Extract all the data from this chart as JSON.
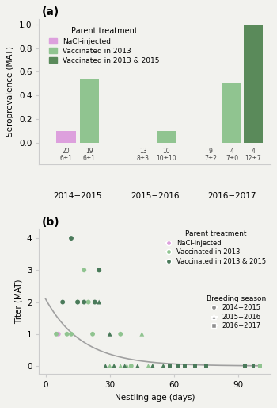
{
  "panel_a": {
    "title": "(a)",
    "ylabel": "Seroprevalence (MAT)",
    "ylim": [
      -0.18,
      1.05
    ],
    "seasons": [
      "2014−2015",
      "2015−2016",
      "2016−2017"
    ],
    "groups": [
      "NaCl-injected",
      "Vaccinated in 2013",
      "Vaccinated in 2013 & 2015"
    ],
    "colors": [
      "#dda0dd",
      "#90c490",
      "#5a8a5a"
    ],
    "bar_values": [
      [
        0.1,
        0.533,
        null
      ],
      [
        null,
        0.1,
        null
      ],
      [
        null,
        0.5,
        1.0
      ]
    ],
    "n_labels": [
      [
        "20",
        "19",
        null
      ],
      [
        "13",
        "10",
        null
      ],
      [
        "9",
        "4",
        "4"
      ]
    ],
    "sd_labels": [
      [
        "6±1",
        "6±1",
        null
      ],
      [
        "8±3",
        "10±10",
        null
      ],
      [
        "7±2",
        "7±0",
        "12±7"
      ]
    ],
    "bar_width": 0.25
  },
  "panel_b": {
    "title": "(b)",
    "xlabel": "Nestling age (days)",
    "ylabel": "Titer (MAT)",
    "ylim": [
      -0.25,
      4.3
    ],
    "xlim": [
      -3,
      105
    ],
    "yticks": [
      0,
      1,
      2,
      3,
      4
    ],
    "xticks": [
      0,
      30,
      60,
      90
    ],
    "decay_a": 2.1,
    "decay_b": 0.058,
    "pink": "#dda0dd",
    "lgreen": "#90c490",
    "dgreen": "#4a7a5a",
    "grey": "#a0a0a0",
    "scatter": {
      "nacl_2014_x": [
        6
      ],
      "nacl_2014_y": [
        1
      ],
      "v13_2014_x": [
        5,
        10,
        12,
        15,
        18,
        20,
        22,
        25,
        35,
        40
      ],
      "v13_2014_y": [
        1,
        1,
        1,
        2,
        3,
        2,
        1,
        3,
        1,
        0
      ],
      "v13_2015_x": [
        30,
        32,
        35,
        38,
        40,
        45,
        48,
        50,
        55
      ],
      "v13_2015_y": [
        0,
        0,
        0,
        0,
        0,
        1,
        0,
        0,
        0
      ],
      "v13_2016_x": [
        58,
        62,
        65,
        70,
        93,
        97,
        100
      ],
      "v13_2016_y": [
        0,
        0,
        0,
        0,
        0,
        0,
        0
      ],
      "vb_2014_x": [
        8,
        12,
        15,
        18,
        23,
        25
      ],
      "vb_2014_y": [
        2,
        4,
        2,
        2,
        2,
        3
      ],
      "vb_2015_x": [
        25,
        28,
        30,
        32,
        37,
        43,
        50,
        55
      ],
      "vb_2015_y": [
        2,
        0,
        1,
        0,
        0,
        0,
        0,
        0
      ],
      "vb_2016_x": [
        58,
        62,
        65,
        70,
        75,
        93,
        97
      ],
      "vb_2016_y": [
        0,
        0,
        0,
        0,
        0,
        0,
        0
      ]
    }
  },
  "background_color": "#f2f2ee",
  "fig_width": 3.5,
  "fig_height": 5.14
}
